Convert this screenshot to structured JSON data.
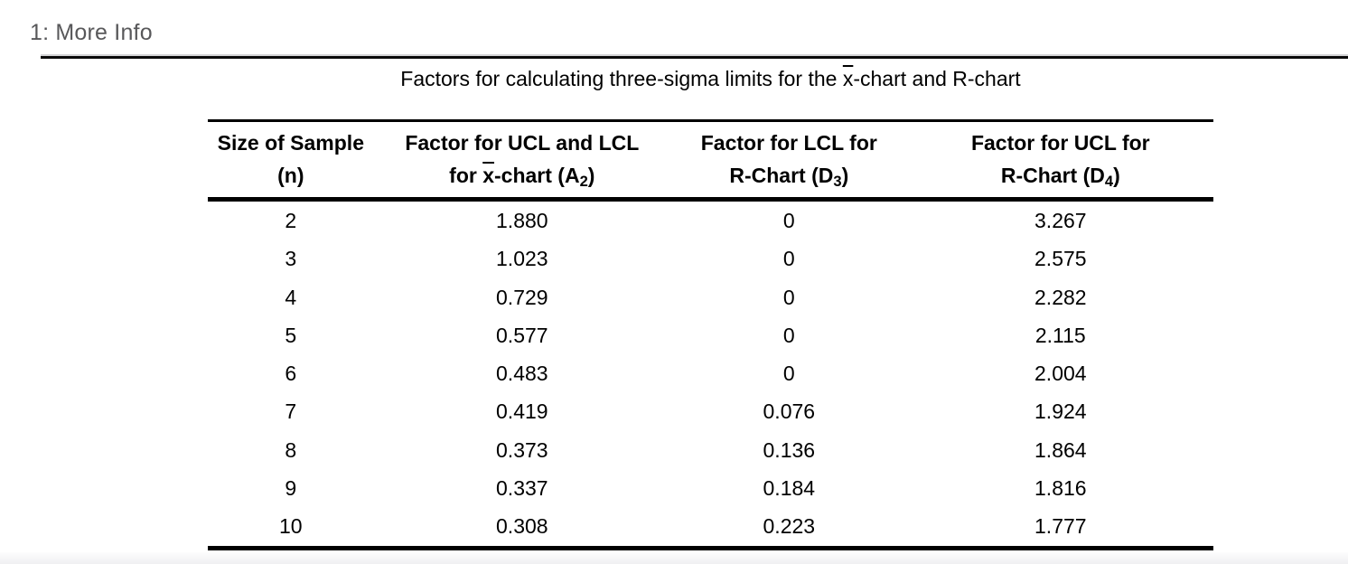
{
  "window": {
    "title": "1: More Info"
  },
  "colors": {
    "title_text": "#58585a",
    "rule_black": "#000000",
    "divider_shadow": "#d4d4d6",
    "footer_shade": "#f0f0f2"
  },
  "table": {
    "caption": {
      "before_x": "Factors for calculating three-sigma limits for the ",
      "x_overline": "x",
      "after_x": "-chart and R-chart"
    },
    "headers": {
      "col1": {
        "line1": "Size of Sample",
        "line2": "(n)"
      },
      "col2": {
        "line1": "Factor for UCL and LCL",
        "line2_pre": "for ",
        "line2_x": "x",
        "line2_mid": "-chart (A",
        "line2_sub": "2",
        "line2_post": ")"
      },
      "col3": {
        "line1": "Factor for LCL for",
        "line2_pre": "R-Chart (D",
        "line2_sub": "3",
        "line2_post": ")"
      },
      "col4": {
        "line1": "Factor for UCL for",
        "line2_pre": "R-Chart (D",
        "line2_sub": "4",
        "line2_post": ")"
      }
    },
    "rows": [
      {
        "n": "2",
        "a2": "1.880",
        "d3": "0",
        "d4": "3.267"
      },
      {
        "n": "3",
        "a2": "1.023",
        "d3": "0",
        "d4": "2.575"
      },
      {
        "n": "4",
        "a2": "0.729",
        "d3": "0",
        "d4": "2.282"
      },
      {
        "n": "5",
        "a2": "0.577",
        "d3": "0",
        "d4": "2.115"
      },
      {
        "n": "6",
        "a2": "0.483",
        "d3": "0",
        "d4": "2.004"
      },
      {
        "n": "7",
        "a2": "0.419",
        "d3": "0.076",
        "d4": "1.924"
      },
      {
        "n": "8",
        "a2": "0.373",
        "d3": "0.136",
        "d4": "1.864"
      },
      {
        "n": "9",
        "a2": "0.337",
        "d3": "0.184",
        "d4": "1.816"
      },
      {
        "n": "10",
        "a2": "0.308",
        "d3": "0.223",
        "d4": "1.777"
      }
    ]
  }
}
